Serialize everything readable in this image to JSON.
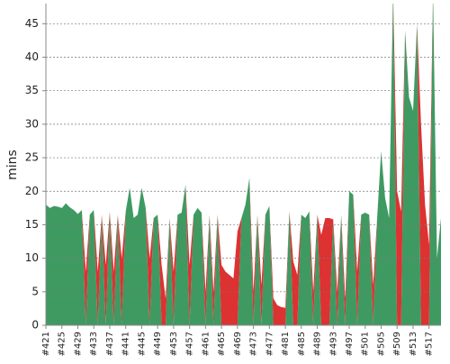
{
  "chart_data": {
    "type": "stacked-area",
    "y_label": "mins",
    "categories": [
      "#421",
      null,
      null,
      null,
      "#425",
      null,
      null,
      null,
      "#429",
      null,
      null,
      null,
      "#433",
      null,
      null,
      null,
      "#437",
      null,
      null,
      null,
      "#441",
      null,
      null,
      null,
      "#445",
      null,
      null,
      null,
      "#449",
      null,
      null,
      null,
      "#453",
      null,
      null,
      null,
      "#457",
      null,
      null,
      null,
      "#461",
      null,
      null,
      null,
      "#465",
      null,
      null,
      null,
      "#469",
      null,
      null,
      null,
      "#473",
      null,
      null,
      null,
      "#477",
      null,
      null,
      null,
      "#481",
      null,
      null,
      null,
      "#485",
      null,
      null,
      null,
      "#489",
      null,
      null,
      null,
      "#493",
      null,
      null,
      null,
      "#497",
      null,
      null,
      null,
      "#501",
      null,
      null,
      null,
      "#505",
      null,
      null,
      null,
      "#509",
      null,
      null,
      null,
      "#513",
      null,
      null,
      null,
      "#517",
      null,
      null,
      null
    ],
    "series": [
      {
        "color": "#3f9a62",
        "values": [
          18,
          17.5,
          17.8,
          17.7,
          17.5,
          18.2,
          17.6,
          17.2,
          16.6,
          17.2,
          0,
          16.5,
          17.2,
          0,
          16.5,
          0,
          17,
          0,
          16.5,
          0,
          17,
          20.5,
          16,
          16.5,
          20.5,
          17.5,
          0,
          16,
          16.5,
          0,
          0,
          16,
          0,
          16.5,
          16.8,
          21,
          0,
          16.5,
          17.5,
          16.8,
          0,
          16.5,
          0,
          16.5,
          0,
          0,
          0,
          0,
          0,
          16,
          18,
          22,
          0,
          16.5,
          0,
          16.5,
          17.8,
          0,
          0,
          0,
          0,
          17,
          0,
          0,
          16.5,
          16,
          17,
          0,
          16.5,
          0,
          0,
          0,
          15.8,
          0,
          16.5,
          0,
          20,
          19.5,
          0,
          16.5,
          16.8,
          16.5,
          0,
          16,
          26,
          19,
          16,
          50,
          0,
          0,
          44,
          34,
          32,
          45,
          0,
          0,
          0,
          50,
          10,
          16
        ]
      },
      {
        "color": "#dc3232",
        "values": [
          0,
          0,
          0,
          0,
          0,
          0,
          0,
          0,
          0,
          0,
          8,
          0,
          0,
          8,
          0,
          9,
          0,
          8,
          0,
          10,
          0,
          0,
          0,
          0,
          0,
          0,
          10,
          0,
          0,
          9,
          4,
          0,
          8,
          0,
          0,
          0,
          9,
          0,
          0,
          0,
          5,
          0,
          5,
          0,
          9,
          8,
          7.5,
          7,
          14,
          0,
          0,
          0,
          5,
          0,
          6,
          0,
          0,
          4,
          3,
          2.7,
          2.6,
          0,
          9.5,
          7.5,
          0,
          0,
          0,
          5,
          0,
          13.5,
          16,
          16,
          0,
          5,
          0,
          4,
          0,
          0,
          8,
          0,
          0,
          0,
          6,
          0,
          0,
          0,
          0,
          0,
          20,
          17,
          0,
          0,
          0,
          0,
          30,
          18,
          12,
          0,
          0,
          0
        ]
      }
    ],
    "ylim": [
      0,
      48
    ],
    "yticks": [
      0,
      5,
      10,
      15,
      20,
      25,
      30,
      35,
      40,
      45
    ],
    "grid": true
  }
}
